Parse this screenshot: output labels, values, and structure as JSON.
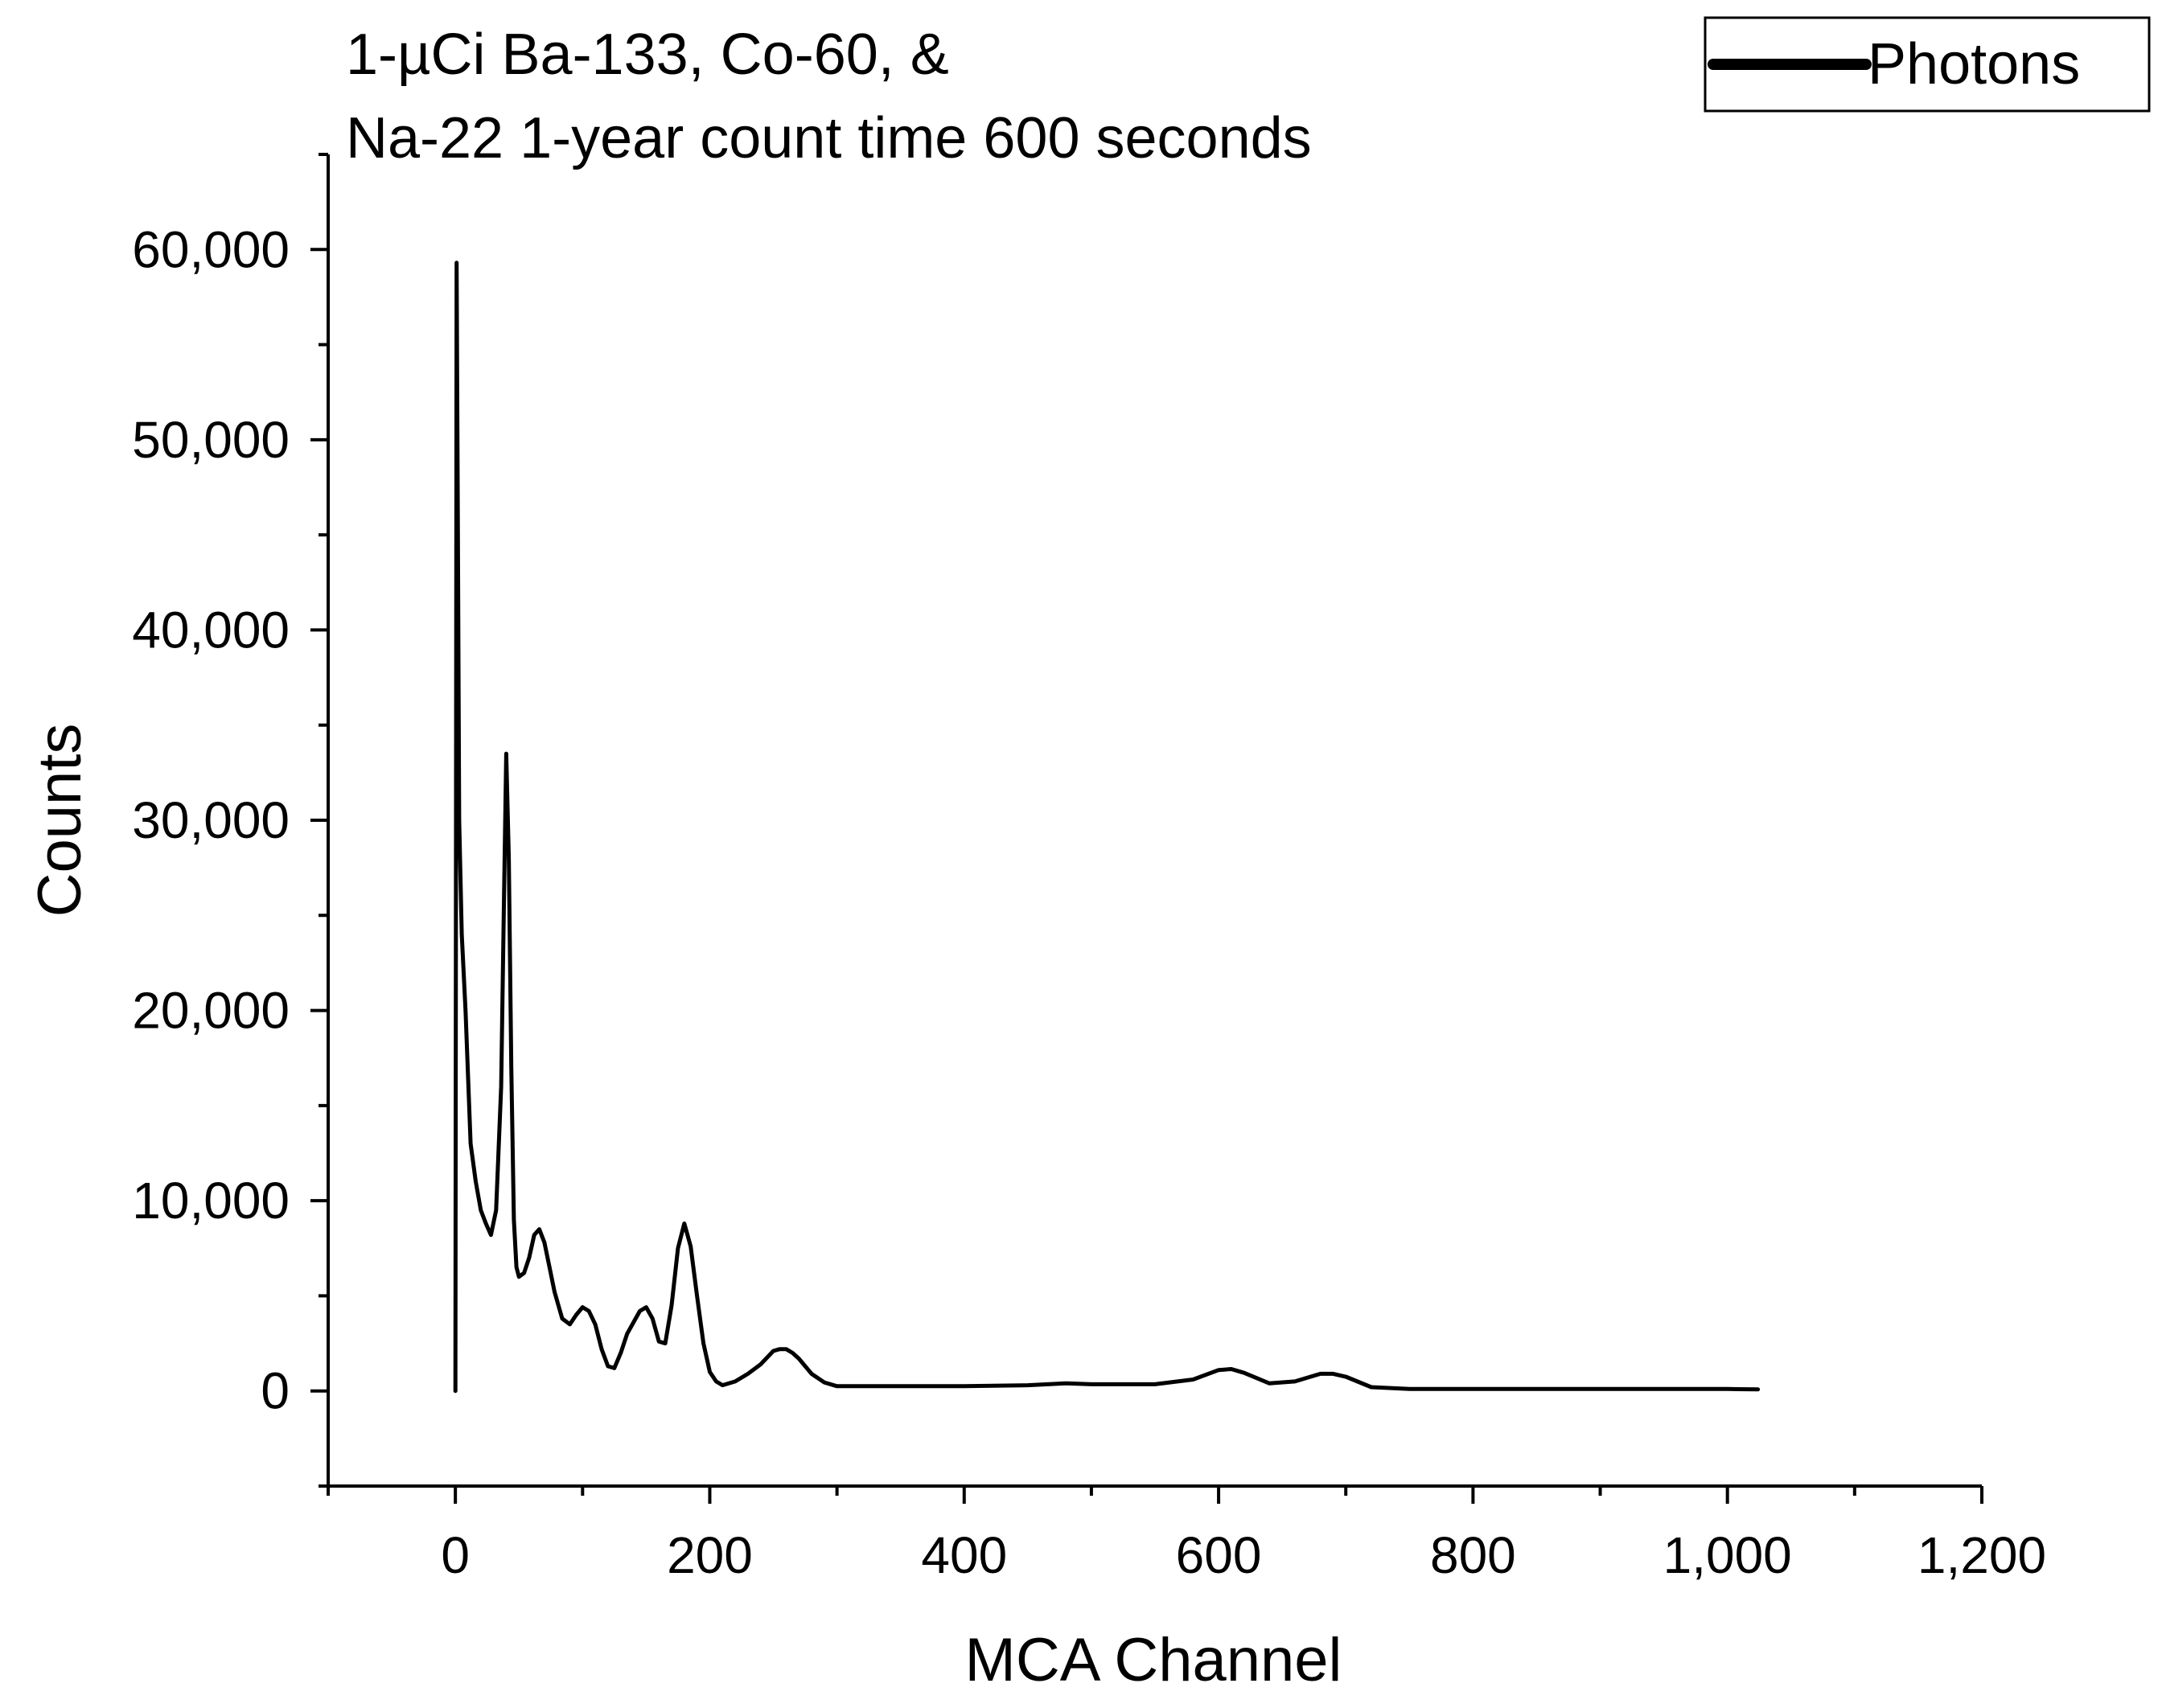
{
  "chart_data": {
    "type": "line",
    "title_lines": [
      "1-µCi Ba-133, Co-60, &",
      "Na-22 1-year count time 600 seconds"
    ],
    "xlabel": "MCA Channel",
    "ylabel": "Counts",
    "xlim": [
      -100,
      1200
    ],
    "ylim": [
      -5000,
      65000
    ],
    "x_ticks": [
      0,
      200,
      400,
      600,
      800,
      1000,
      1200
    ],
    "x_tick_labels": [
      "0",
      "200",
      "400",
      "600",
      "800",
      "1,000",
      "1,200"
    ],
    "y_ticks": [
      0,
      10000,
      20000,
      30000,
      40000,
      50000,
      60000
    ],
    "y_tick_labels": [
      "0",
      "10,000",
      "20,000",
      "30,000",
      "40,000",
      "50,000",
      "60,000"
    ],
    "grid": false,
    "legend_position": "top-right",
    "series": [
      {
        "name": "Photons",
        "color": "#000000",
        "x": [
          0,
          1,
          2,
          3,
          5,
          8,
          12,
          16,
          20,
          24,
          28,
          32,
          36,
          38,
          40,
          42,
          44,
          46,
          48,
          50,
          54,
          58,
          62,
          66,
          70,
          74,
          78,
          84,
          90,
          95,
          100,
          105,
          110,
          115,
          120,
          125,
          130,
          135,
          140,
          145,
          150,
          155,
          160,
          165,
          170,
          175,
          180,
          185,
          190,
          195,
          200,
          205,
          210,
          220,
          230,
          240,
          250,
          255,
          260,
          265,
          270,
          280,
          290,
          300,
          320,
          350,
          400,
          450,
          480,
          500,
          550,
          580,
          600,
          610,
          620,
          640,
          660,
          680,
          690,
          700,
          720,
          750,
          800,
          850,
          900,
          950,
          1000,
          1024
        ],
        "y": [
          0,
          59300,
          45000,
          30000,
          24000,
          20000,
          13000,
          11000,
          9500,
          8800,
          8200,
          9500,
          16000,
          25000,
          33500,
          28000,
          17000,
          9000,
          6500,
          6000,
          6200,
          7000,
          8200,
          8500,
          7800,
          6500,
          5200,
          3800,
          3500,
          4000,
          4400,
          4200,
          3500,
          2200,
          1300,
          1200,
          2000,
          3000,
          3600,
          4200,
          4400,
          3800,
          2600,
          2500,
          4500,
          7500,
          8800,
          7600,
          5000,
          2500,
          1000,
          500,
          300,
          500,
          900,
          1400,
          2100,
          2200,
          2200,
          2000,
          1700,
          900,
          450,
          250,
          250,
          250,
          250,
          300,
          400,
          350,
          350,
          600,
          1100,
          1150,
          950,
          400,
          500,
          900,
          900,
          750,
          200,
          100,
          100,
          100,
          100,
          100,
          100,
          80
        ]
      }
    ]
  }
}
